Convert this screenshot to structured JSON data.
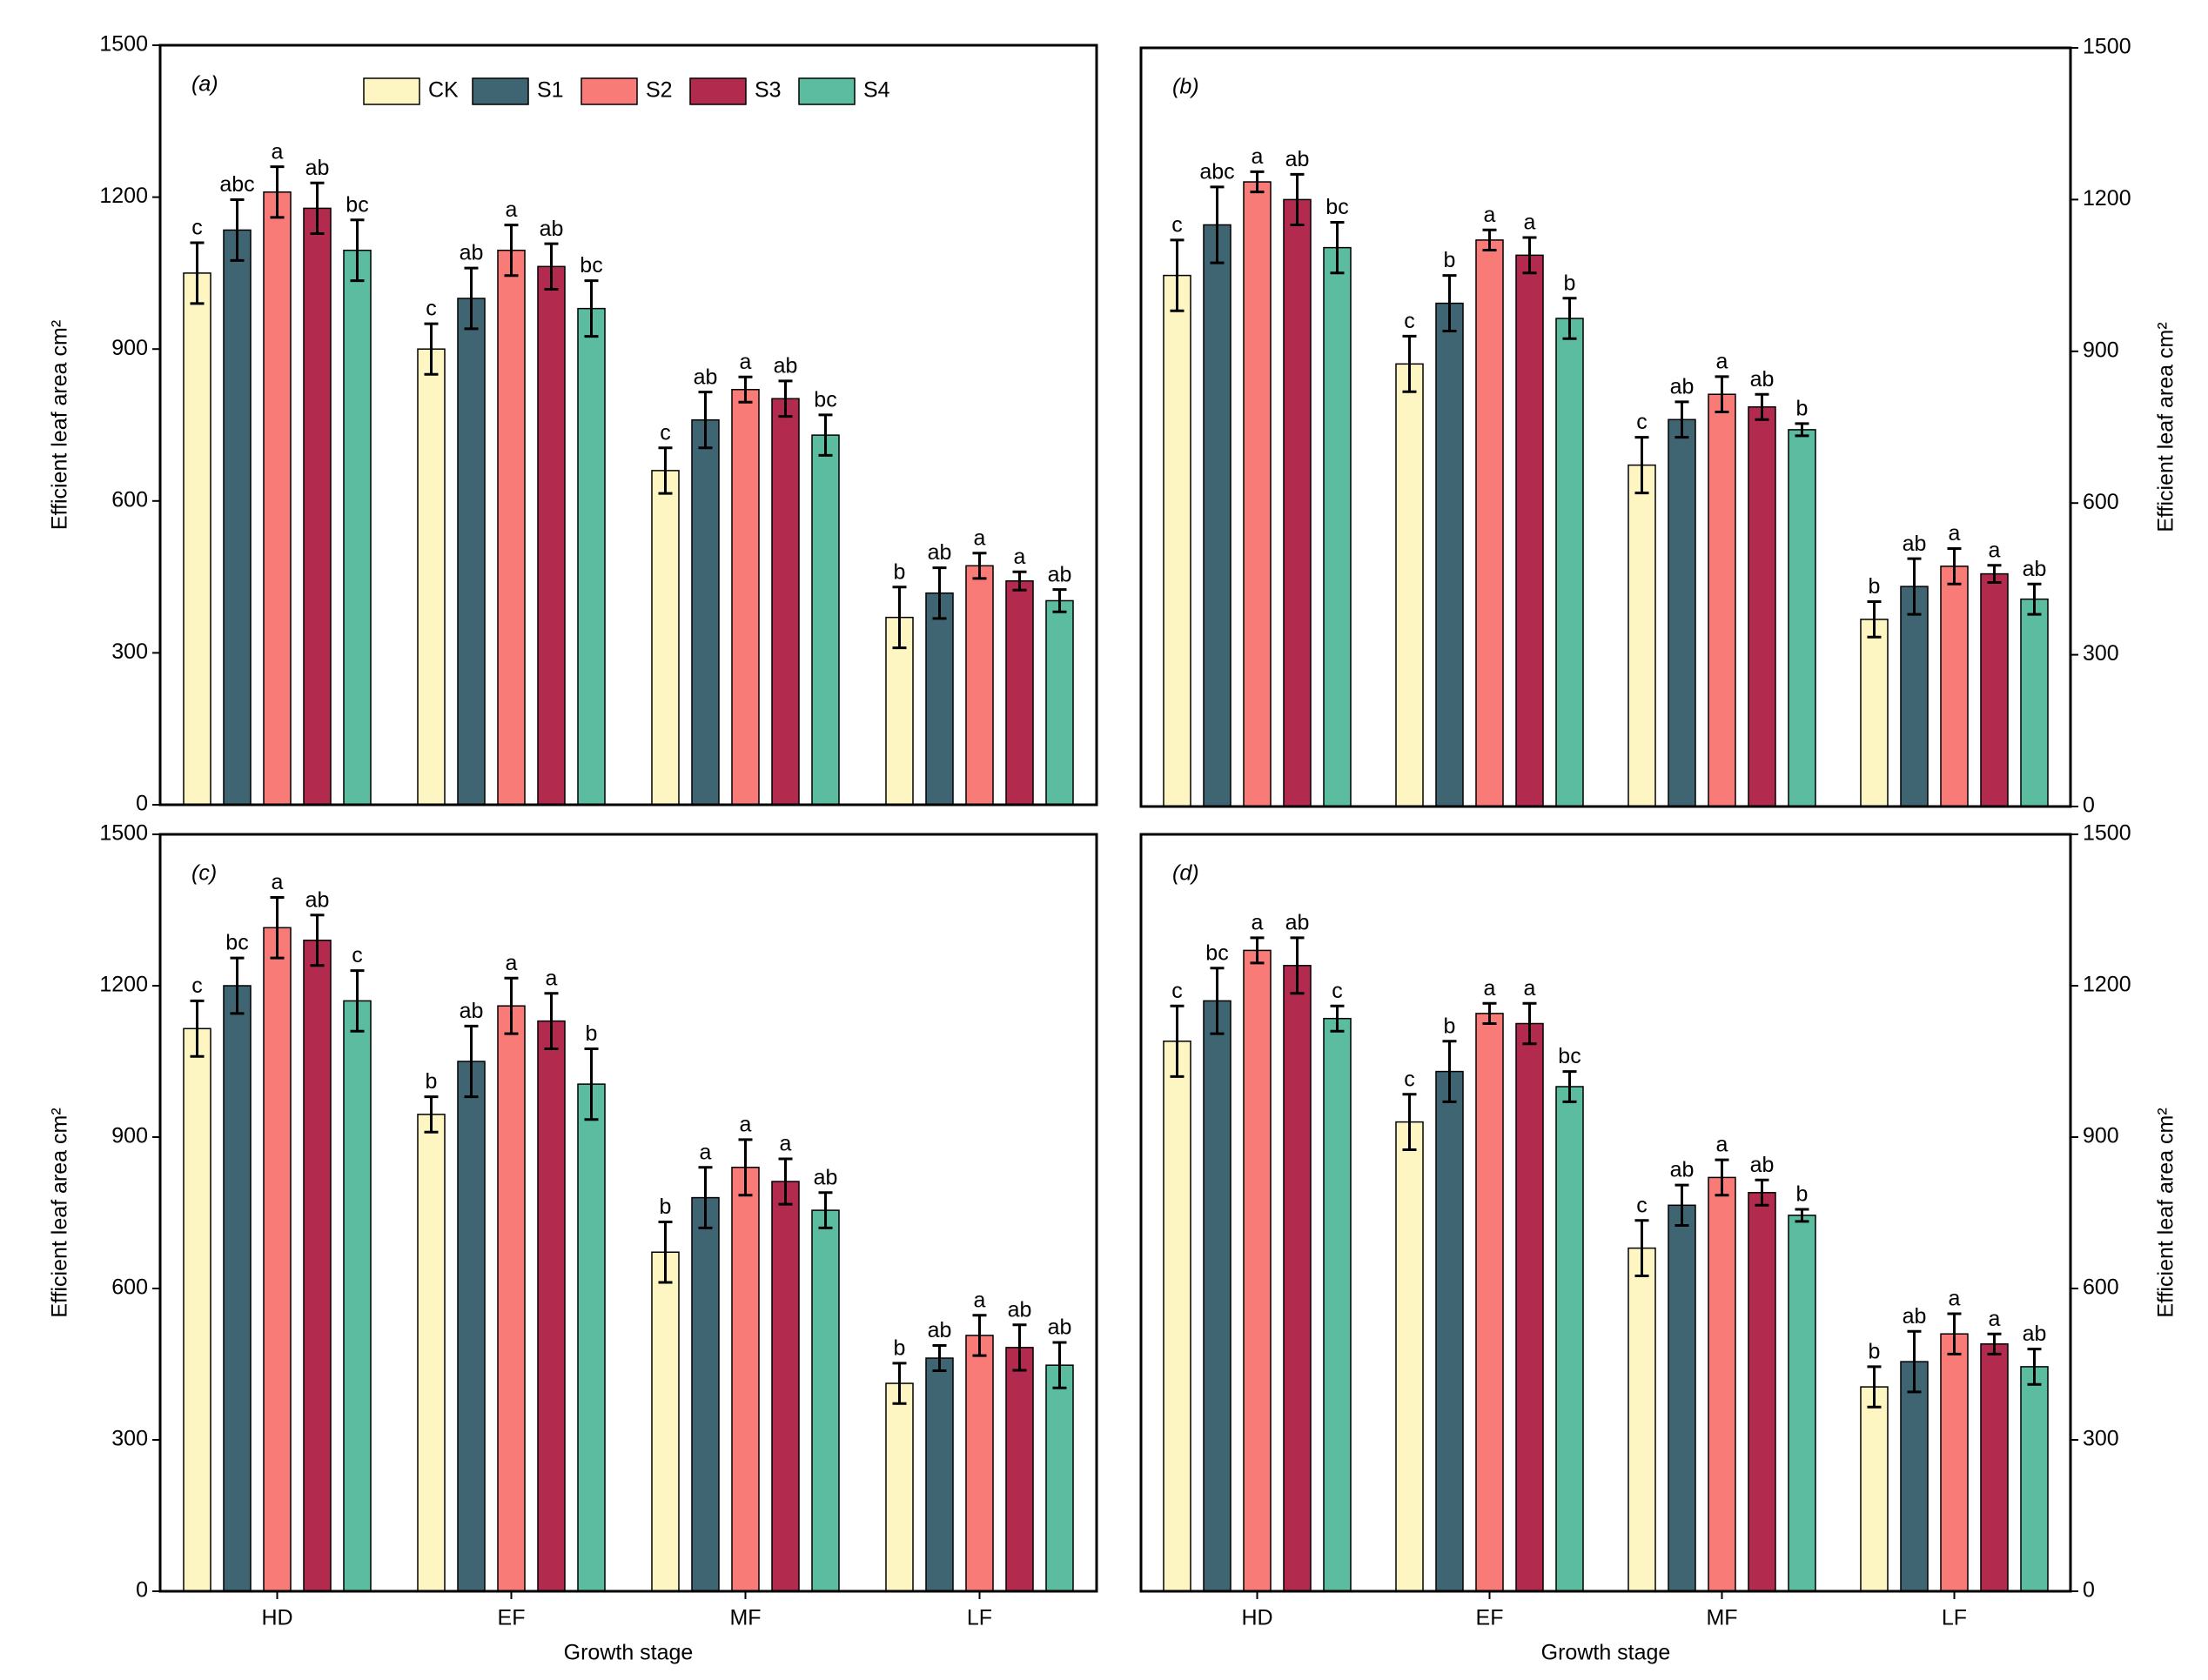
{
  "chart_data": [
    {
      "type": "bar",
      "panel_label": "(a)",
      "ylabel": "Efficient leaf area cm²",
      "y_axis_side": "left",
      "legend": "top",
      "categories": [
        null,
        null,
        null,
        null
      ],
      "ylim": [
        0,
        1500
      ],
      "yticks": [
        0,
        300,
        600,
        900,
        1200,
        1500
      ],
      "series": [
        {
          "name": "CK",
          "color": "#fdf6c3",
          "values": [
            1050,
            900,
            660,
            370
          ],
          "errors": [
            60,
            50,
            45,
            60
          ],
          "letters": [
            "c",
            "c",
            "c",
            "b"
          ]
        },
        {
          "name": "S1",
          "color": "#3f6472",
          "values": [
            1135,
            1000,
            760,
            418
          ],
          "errors": [
            60,
            60,
            55,
            50
          ],
          "letters": [
            "abc",
            "ab",
            "ab",
            "ab"
          ]
        },
        {
          "name": "S2",
          "color": "#f97b78",
          "values": [
            1210,
            1095,
            820,
            472
          ],
          "errors": [
            50,
            50,
            25,
            25
          ],
          "letters": [
            "a",
            "a",
            "a",
            "a"
          ]
        },
        {
          "name": "S3",
          "color": "#b22a4d",
          "values": [
            1178,
            1063,
            802,
            442
          ],
          "errors": [
            50,
            45,
            35,
            18
          ],
          "letters": [
            "ab",
            "ab",
            "ab",
            "a"
          ]
        },
        {
          "name": "S4",
          "color": "#5bbc9f",
          "values": [
            1095,
            980,
            730,
            403
          ],
          "errors": [
            60,
            55,
            40,
            22
          ],
          "letters": [
            "bc",
            "bc",
            "bc",
            "ab"
          ]
        }
      ]
    },
    {
      "type": "bar",
      "panel_label": "(b)",
      "ylabel": "Efficient leaf area cm²",
      "y_axis_side": "right",
      "categories": [
        null,
        null,
        null,
        null
      ],
      "ylim": [
        0,
        1500
      ],
      "yticks": [
        0,
        300,
        600,
        900,
        1200,
        1500
      ],
      "series": [
        {
          "color": "#fdf6c3",
          "values": [
            1050,
            875,
            675,
            370
          ],
          "errors": [
            70,
            55,
            55,
            35
          ],
          "letters": [
            "c",
            "c",
            "c",
            "b"
          ]
        },
        {
          "color": "#3f6472",
          "values": [
            1150,
            995,
            765,
            435
          ],
          "errors": [
            75,
            55,
            35,
            55
          ],
          "letters": [
            "abc",
            "b",
            "ab",
            "ab"
          ]
        },
        {
          "color": "#f97b78",
          "values": [
            1235,
            1120,
            815,
            475
          ],
          "errors": [
            20,
            20,
            35,
            35
          ],
          "letters": [
            "a",
            "a",
            "a",
            "a"
          ]
        },
        {
          "color": "#b22a4d",
          "values": [
            1200,
            1090,
            790,
            460
          ],
          "errors": [
            50,
            35,
            25,
            17
          ],
          "letters": [
            "ab",
            "a",
            "ab",
            "a"
          ]
        },
        {
          "color": "#5bbc9f",
          "values": [
            1105,
            965,
            745,
            410
          ],
          "errors": [
            50,
            40,
            12,
            30
          ],
          "letters": [
            "bc",
            "b",
            "b",
            "ab"
          ]
        }
      ]
    },
    {
      "type": "bar",
      "panel_label": "(c)",
      "ylabel": "Efficient leaf area cm²",
      "xlabel": "Growth stage",
      "y_axis_side": "left",
      "categories": [
        "HD",
        "EF",
        "MF",
        "LF"
      ],
      "ylim": [
        0,
        1500
      ],
      "yticks": [
        0,
        300,
        600,
        900,
        1200,
        1500
      ],
      "series": [
        {
          "color": "#fdf6c3",
          "values": [
            1115,
            945,
            672,
            412
          ],
          "errors": [
            55,
            35,
            60,
            40
          ],
          "letters": [
            "c",
            "b",
            "b",
            "b"
          ]
        },
        {
          "color": "#3f6472",
          "values": [
            1200,
            1050,
            780,
            462
          ],
          "errors": [
            55,
            70,
            60,
            25
          ],
          "letters": [
            "bc",
            "ab",
            "a",
            "ab"
          ]
        },
        {
          "color": "#f97b78",
          "values": [
            1315,
            1160,
            840,
            507
          ],
          "errors": [
            60,
            55,
            55,
            40
          ],
          "letters": [
            "a",
            "a",
            "a",
            "a"
          ]
        },
        {
          "color": "#b22a4d",
          "values": [
            1290,
            1130,
            812,
            483
          ],
          "errors": [
            50,
            55,
            45,
            45
          ],
          "letters": [
            "ab",
            "a",
            "a",
            "ab"
          ]
        },
        {
          "color": "#5bbc9f",
          "values": [
            1170,
            1005,
            755,
            448
          ],
          "errors": [
            60,
            70,
            35,
            45
          ],
          "letters": [
            "c",
            "b",
            "ab",
            "ab"
          ]
        }
      ]
    },
    {
      "type": "bar",
      "panel_label": "(d)",
      "ylabel": "Efficient leaf area cm²",
      "xlabel": "Growth stage",
      "y_axis_side": "right",
      "categories": [
        "HD",
        "EF",
        "MF",
        "LF"
      ],
      "ylim": [
        0,
        1500
      ],
      "yticks": [
        0,
        300,
        600,
        900,
        1200,
        1500
      ],
      "series": [
        {
          "color": "#fdf6c3",
          "values": [
            1090,
            930,
            680,
            405
          ],
          "errors": [
            70,
            55,
            55,
            40
          ],
          "letters": [
            "c",
            "c",
            "c",
            "b"
          ]
        },
        {
          "color": "#3f6472",
          "values": [
            1170,
            1030,
            765,
            455
          ],
          "errors": [
            65,
            60,
            40,
            60
          ],
          "letters": [
            "bc",
            "b",
            "ab",
            "ab"
          ]
        },
        {
          "color": "#f97b78",
          "values": [
            1270,
            1145,
            820,
            510
          ],
          "errors": [
            25,
            20,
            35,
            40
          ],
          "letters": [
            "a",
            "a",
            "a",
            "a"
          ]
        },
        {
          "color": "#b22a4d",
          "values": [
            1240,
            1125,
            790,
            490
          ],
          "errors": [
            55,
            40,
            25,
            20
          ],
          "letters": [
            "ab",
            "a",
            "ab",
            "a"
          ]
        },
        {
          "color": "#5bbc9f",
          "values": [
            1135,
            1000,
            745,
            445
          ],
          "errors": [
            25,
            30,
            12,
            35
          ],
          "letters": [
            "c",
            "bc",
            "b",
            "ab"
          ]
        }
      ]
    }
  ]
}
